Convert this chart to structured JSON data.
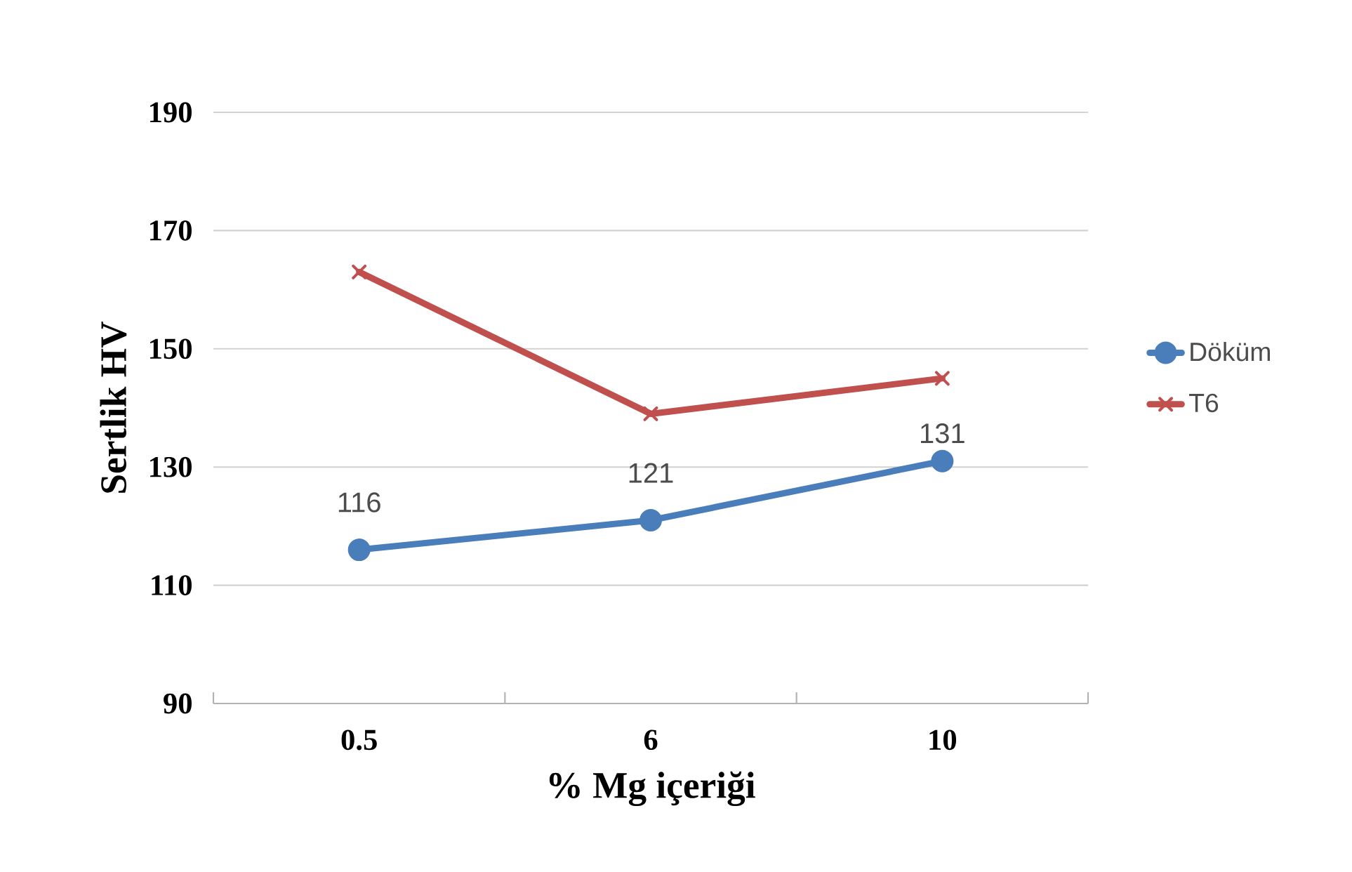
{
  "chart_data": {
    "type": "line",
    "xlabel": "% Mg içeriği",
    "ylabel": "Sertlik HV",
    "categories": [
      "0.5",
      "6",
      "10"
    ],
    "series": [
      {
        "name": "Döküm",
        "color": "#4a7ebb",
        "marker": "circle",
        "values": [
          116,
          121,
          131
        ],
        "value_labels": [
          "116",
          "121",
          "131"
        ]
      },
      {
        "name": "T6",
        "color": "#c0504d",
        "marker": "cross",
        "values": [
          163,
          139,
          145
        ]
      }
    ],
    "ylim": [
      90,
      190
    ],
    "yticks": [
      90,
      110,
      130,
      150,
      170,
      190
    ],
    "grid": "y",
    "legend": "right",
    "line_style": "solid"
  }
}
